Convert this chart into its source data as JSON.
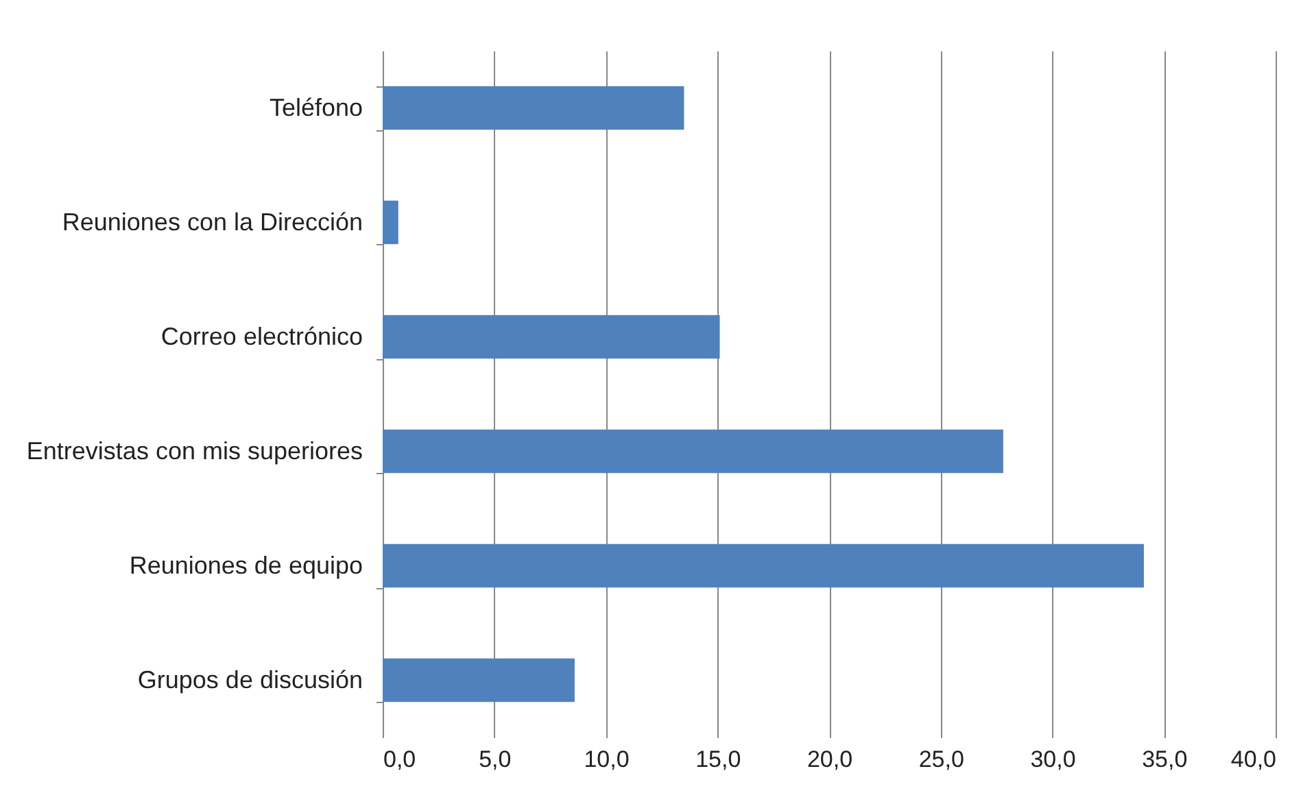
{
  "chart_data": {
    "type": "bar",
    "orientation": "horizontal",
    "categories": [
      "Teléfono",
      "Reuniones con la Dirección",
      "Correo electrónico",
      "Entrevistas con mis superiores",
      "Reuniones de equipo",
      "Grupos de discusión"
    ],
    "values": [
      13.5,
      0.7,
      15.1,
      27.8,
      34.1,
      8.6
    ],
    "color": "#4f81bd",
    "xlim": [
      0,
      40
    ],
    "xticks": [
      {
        "value": 0,
        "label": "0,0"
      },
      {
        "value": 5,
        "label": "5,0"
      },
      {
        "value": 10,
        "label": "10,0"
      },
      {
        "value": 15,
        "label": "15,0"
      },
      {
        "value": 20,
        "label": "20,0"
      },
      {
        "value": 25,
        "label": "25,0"
      },
      {
        "value": 30,
        "label": "30,0"
      },
      {
        "value": 35,
        "label": "35,0"
      },
      {
        "value": 40,
        "label": "40,0"
      }
    ],
    "grid": "x"
  }
}
